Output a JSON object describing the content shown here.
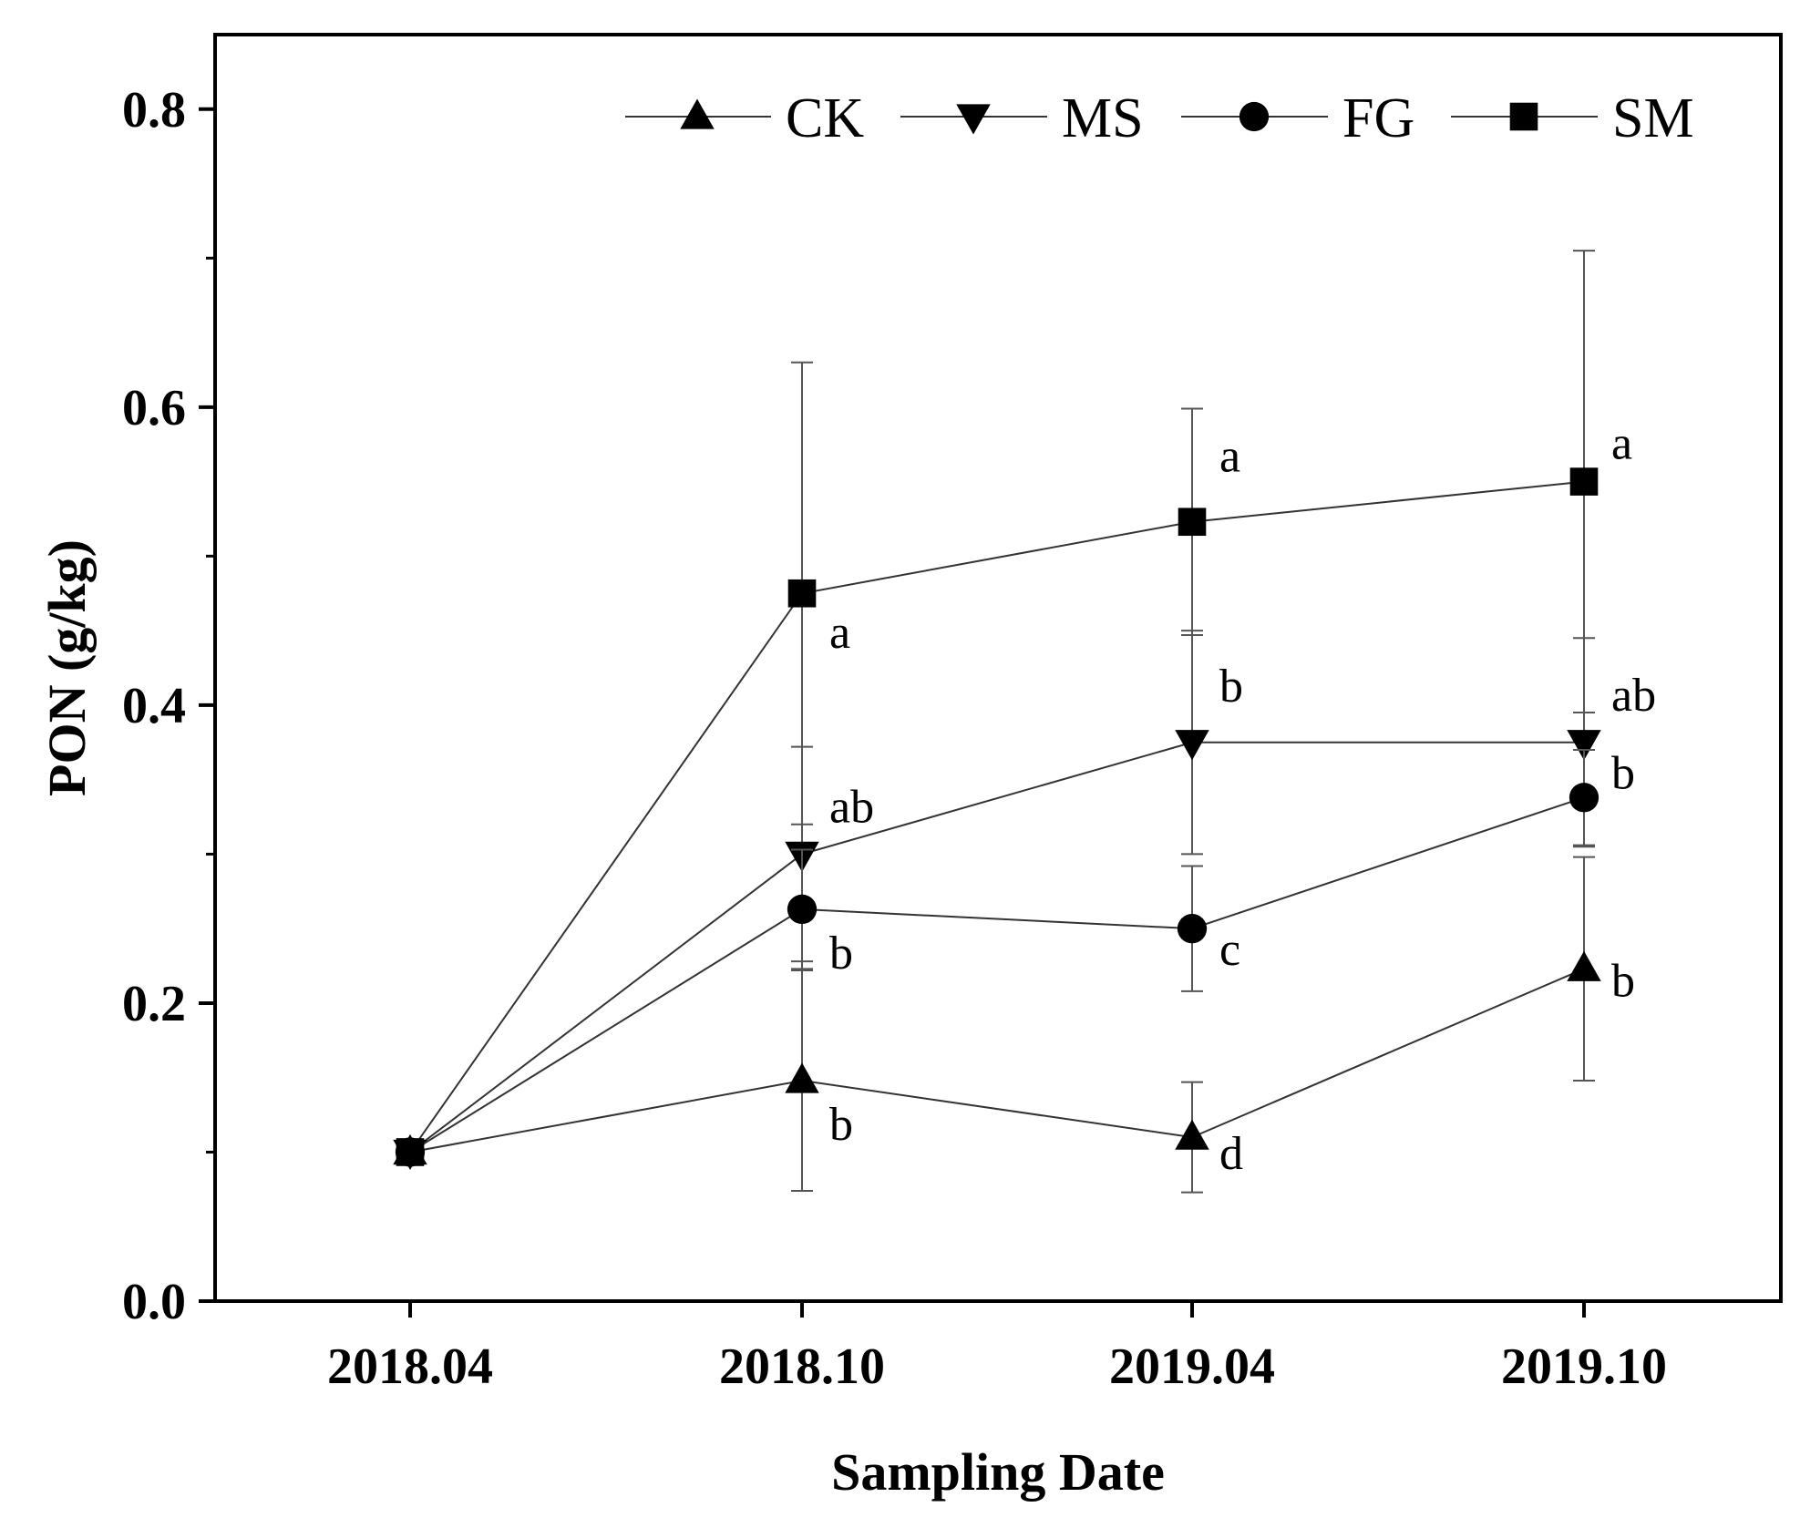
{
  "chart_data": {
    "type": "line",
    "title": "",
    "xlabel": "Sampling Date",
    "ylabel": "PON (g/kg)",
    "categories": [
      "2018.04",
      "2018.10",
      "2019.04",
      "2019.10"
    ],
    "ylim": [
      0.0,
      0.85
    ],
    "yticks": [
      "0.0",
      "0.2",
      "0.4",
      "0.6",
      "0.8"
    ],
    "legend_position": "top",
    "series": [
      {
        "name": "CK",
        "marker": "triangle-up",
        "values": [
          0.1,
          0.148,
          0.11,
          0.223
        ],
        "errors": [
          0,
          0.074,
          0.037,
          0.075
        ],
        "letters": [
          "",
          "b",
          "d",
          "b"
        ]
      },
      {
        "name": "MS",
        "marker": "triangle-down",
        "values": [
          0.1,
          0.3,
          0.375,
          0.375
        ],
        "errors": [
          0,
          0.072,
          0.075,
          0.07
        ],
        "letters": [
          "",
          "ab",
          "b",
          "ab"
        ]
      },
      {
        "name": "FG",
        "marker": "circle",
        "values": [
          0.1,
          0.263,
          0.25,
          0.338
        ],
        "errors": [
          0,
          0.04,
          0.042,
          0.032
        ],
        "letters": [
          "",
          "b",
          "c",
          "b"
        ]
      },
      {
        "name": "SM",
        "marker": "square",
        "values": [
          0.1,
          0.475,
          0.523,
          0.55
        ],
        "errors": [
          0,
          0.155,
          0.076,
          0.155
        ],
        "letters": [
          "",
          "a",
          "a",
          "a"
        ]
      }
    ]
  }
}
